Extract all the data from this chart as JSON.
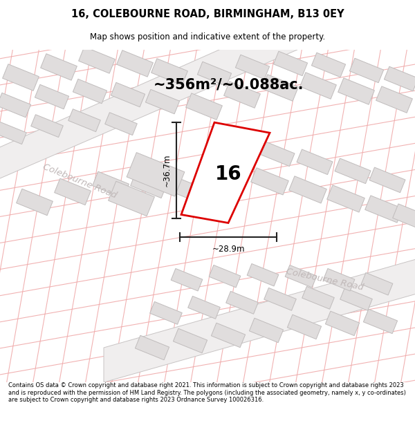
{
  "title_line1": "16, COLEBOURNE ROAD, BIRMINGHAM, B13 0EY",
  "title_line2": "Map shows position and indicative extent of the property.",
  "area_text": "~356m²/~0.088ac.",
  "property_number": "16",
  "width_label": "~28.9m",
  "height_label": "~36.7m",
  "road_label1": "Colebourne Road",
  "road_label2": "Colebourne Road",
  "footer_text": "Contains OS data © Crown copyright and database right 2021. This information is subject to Crown copyright and database rights 2023 and is reproduced with the permission of HM Land Registry. The polygons (including the associated geometry, namely x, y co-ordinates) are subject to Crown copyright and database rights 2023 Ordnance Survey 100026316.",
  "bg_color": "#f7f6f6",
  "map_bg": "#f7f6f6",
  "plot_line_color": "#dd0000",
  "measure_line_color": "#222222",
  "road_text_color": "#c0b8b8",
  "grid_line_color": "#f0aaaa",
  "building_color": "#e0dddd",
  "building_border": "#cccccc",
  "road_fill": "#ffffff",
  "road_border": "#d0cccc"
}
